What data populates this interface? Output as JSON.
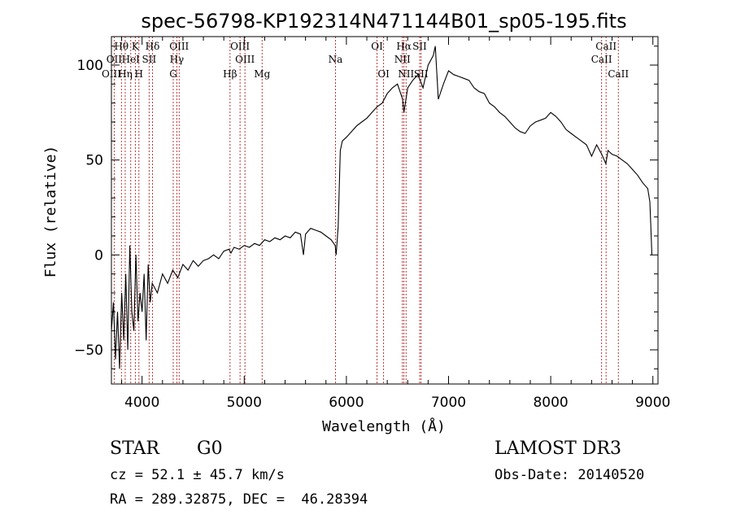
{
  "chart_data": {
    "type": "line",
    "title": "spec-56798-KP192314N471144B01_sp05-195.fits",
    "xlabel": "Wavelength (Å)",
    "ylabel": "Flux (relative)",
    "xlim": [
      3700,
      9050
    ],
    "ylim": [
      -68,
      115
    ],
    "xticks": [
      4000,
      5000,
      6000,
      7000,
      8000,
      9000
    ],
    "yticks": [
      -50,
      0,
      50,
      100
    ],
    "grid": false,
    "line_color": "#000000",
    "marker_color": "#b22222",
    "series": [
      {
        "x": [
          3700,
          3720,
          3740,
          3760,
          3780,
          3800,
          3820,
          3840,
          3860,
          3880,
          3900,
          3920,
          3940,
          3960,
          3980,
          4000,
          4020,
          4040,
          4060,
          4080,
          4100,
          4150,
          4200,
          4250,
          4300,
          4350,
          4400,
          4450,
          4500,
          4550,
          4600,
          4650,
          4700,
          4750,
          4800,
          4850,
          4870,
          4900,
          4950,
          5000,
          5050,
          5100,
          5150,
          5200,
          5250,
          5300,
          5350,
          5400,
          5450,
          5500,
          5550,
          5580,
          5600,
          5650,
          5700,
          5750,
          5800,
          5850,
          5890,
          5900,
          5920,
          5940,
          5960,
          6000,
          6050,
          6100,
          6150,
          6200,
          6250,
          6300,
          6350,
          6400,
          6450,
          6500,
          6550,
          6563,
          6600,
          6650,
          6700,
          6750,
          6800,
          6850,
          6870,
          6900,
          6950,
          7000,
          7050,
          7100,
          7150,
          7200,
          7250,
          7300,
          7350,
          7400,
          7450,
          7500,
          7550,
          7600,
          7650,
          7700,
          7750,
          7800,
          7850,
          7900,
          7950,
          8000,
          8050,
          8100,
          8150,
          8200,
          8250,
          8300,
          8350,
          8400,
          8450,
          8500,
          8540,
          8560,
          8600,
          8650,
          8700,
          8750,
          8800,
          8850,
          8900,
          8950,
          8970,
          8980,
          8990
        ],
        "y": [
          -40,
          -25,
          -55,
          -30,
          -60,
          -20,
          -45,
          -10,
          -50,
          5,
          -30,
          -40,
          0,
          -35,
          -20,
          -30,
          -10,
          -45,
          -5,
          -25,
          -15,
          -20,
          -10,
          -15,
          -8,
          -12,
          -5,
          -8,
          -3,
          -6,
          -3,
          -2,
          0,
          -2,
          2,
          3,
          1,
          4,
          3,
          5,
          4,
          6,
          5,
          8,
          7,
          9,
          8,
          10,
          9,
          12,
          11,
          0,
          11,
          14,
          13,
          12,
          10,
          8,
          5,
          0,
          15,
          55,
          60,
          62,
          65,
          68,
          70,
          72,
          75,
          78,
          80,
          85,
          88,
          90,
          82,
          75,
          88,
          92,
          95,
          88,
          100,
          105,
          110,
          82,
          90,
          97,
          95,
          94,
          93,
          92,
          88,
          86,
          85,
          80,
          78,
          75,
          73,
          70,
          67,
          65,
          64,
          68,
          70,
          71,
          72,
          75,
          73,
          70,
          66,
          64,
          62,
          60,
          58,
          52,
          58,
          53,
          48,
          55,
          53,
          52,
          50,
          48,
          45,
          42,
          38,
          35,
          28,
          15,
          0
        ]
      }
    ],
    "spectral_lines": [
      {
        "label": "Hθ",
        "x": 3798,
        "row": 1
      },
      {
        "label": "OII",
        "x": 3727,
        "row": 2
      },
      {
        "label": "OIII",
        "x": 3700,
        "row": 3
      },
      {
        "label": "Hη",
        "x": 3835,
        "row": 3
      },
      {
        "label": "HeI",
        "x": 3889,
        "row": 2
      },
      {
        "label": "K",
        "x": 3934,
        "row": 1
      },
      {
        "label": "SII",
        "x": 4069,
        "row": 2
      },
      {
        "label": "H",
        "x": 3969,
        "row": 3
      },
      {
        "label": "Hδ",
        "x": 4102,
        "row": 1
      },
      {
        "label": "OIII",
        "x": 4363,
        "row": 1
      },
      {
        "label": "Hγ",
        "x": 4340,
        "row": 2
      },
      {
        "label": "G",
        "x": 4305,
        "row": 3
      },
      {
        "label": "OIII",
        "x": 4959,
        "row": 1
      },
      {
        "label": "OIII",
        "x": 5007,
        "row": 2
      },
      {
        "label": "Hβ",
        "x": 4861,
        "row": 3
      },
      {
        "label": "Mg",
        "x": 5175,
        "row": 3
      },
      {
        "label": "Na",
        "x": 5893,
        "row": 2
      },
      {
        "label": "OI",
        "x": 6300,
        "row": 1
      },
      {
        "label": "OI",
        "x": 6364,
        "row": 3
      },
      {
        "label": "Hα",
        "x": 6563,
        "row": 1
      },
      {
        "label": "SII",
        "x": 6717,
        "row": 1
      },
      {
        "label": "NII",
        "x": 6548,
        "row": 2
      },
      {
        "label": "NII",
        "x": 6584,
        "row": 3
      },
      {
        "label": "SII",
        "x": 6731,
        "row": 3
      },
      {
        "label": "CaII",
        "x": 8542,
        "row": 1
      },
      {
        "label": "CaII",
        "x": 8498,
        "row": 2
      },
      {
        "label": "CaII",
        "x": 8662,
        "row": 3
      }
    ]
  },
  "info": {
    "object_type": "STAR",
    "subclass": "G0",
    "survey": "LAMOST DR3",
    "cz": "cz = 52.1 ± 45.7 km/s",
    "obs_date": "Obs-Date: 20140520",
    "coords": "RA = 289.32875, DEC =  46.28394"
  }
}
